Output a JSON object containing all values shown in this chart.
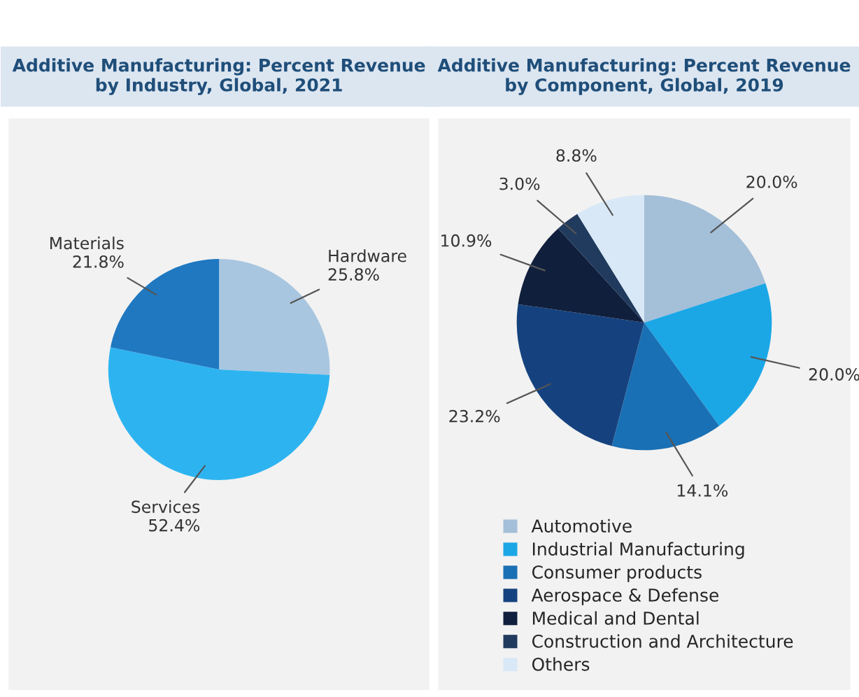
{
  "chart_data": [
    {
      "type": "pie",
      "title": "Additive Manufacturing: Percent Revenue\nby Industry, Global, 2021",
      "categories": [
        "Hardware",
        "Services",
        "Materials"
      ],
      "values": [
        25.8,
        52.4,
        21.8
      ],
      "colors": [
        "#a9c6e0",
        "#2db4f0",
        "#1f78c0"
      ],
      "value_labels": [
        "25.8%",
        "52.4%",
        "21.8%"
      ],
      "legend": false
    },
    {
      "type": "pie",
      "title": "Additive Manufacturing: Percent Revenue\nby Component, Global, 2019",
      "categories": [
        "Automotive",
        "Industrial Manufacturing",
        "Consumer products",
        "Aerospace & Defense",
        "Medical and Dental",
        "Construction and Architecture",
        "Others"
      ],
      "values": [
        20.0,
        20.0,
        14.1,
        23.2,
        10.9,
        3.0,
        8.8
      ],
      "colors": [
        "#a4bfd8",
        "#1ba7e6",
        "#1a70b4",
        "#15427f",
        "#101f3c",
        "#213b5e",
        "#d8e8f6"
      ],
      "value_labels": [
        "20.0%",
        "20.0%",
        "14.1%",
        "23.2%",
        "10.9%",
        "3.0%",
        "8.8%"
      ],
      "legend": "bottom"
    }
  ]
}
